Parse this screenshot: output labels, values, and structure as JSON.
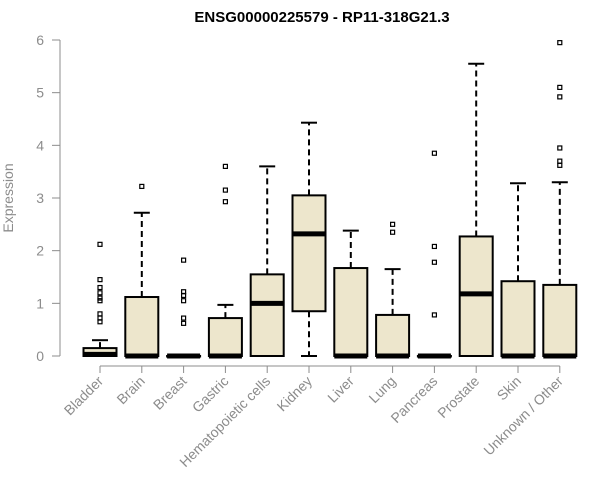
{
  "chart_data": {
    "type": "box",
    "title": "ENSG00000225579 - RP11-318G21.3",
    "xlabel": "",
    "ylabel": "Expression",
    "ylim": [
      0,
      6
    ],
    "yticks": [
      "0",
      "1",
      "2",
      "3",
      "4",
      "5",
      "6"
    ],
    "box_fill": "#ede6cc",
    "series": [
      {
        "name": "Bladder",
        "q1": 0.0,
        "median": 0.03,
        "q3": 0.15,
        "whisker_low": 0.0,
        "whisker_high": 0.3,
        "outliers": [
          2.12,
          1.45,
          1.3,
          1.2,
          1.1,
          1.05,
          0.8,
          0.72,
          0.65
        ]
      },
      {
        "name": "Brain",
        "q1": 0.0,
        "median": 0.0,
        "q3": 1.12,
        "whisker_low": 0.0,
        "whisker_high": 2.72,
        "outliers": [
          3.22
        ]
      },
      {
        "name": "Breast",
        "q1": 0.0,
        "median": 0.0,
        "q3": 0.0,
        "whisker_low": 0.0,
        "whisker_high": 0.0,
        "outliers": [
          1.82,
          1.22,
          1.15,
          1.05,
          0.72,
          0.62
        ]
      },
      {
        "name": "Gastric",
        "q1": 0.0,
        "median": 0.0,
        "q3": 0.72,
        "whisker_low": 0.0,
        "whisker_high": 0.97,
        "outliers": [
          3.6,
          3.15,
          2.93
        ]
      },
      {
        "name": "Hematopoietic cells",
        "q1": 0.0,
        "median": 1.0,
        "q3": 1.55,
        "whisker_low": 0.0,
        "whisker_high": 3.6,
        "outliers": []
      },
      {
        "name": "Kidney",
        "q1": 0.85,
        "median": 2.32,
        "q3": 3.05,
        "whisker_low": 0.0,
        "whisker_high": 4.43,
        "outliers": []
      },
      {
        "name": "Liver",
        "q1": 0.0,
        "median": 0.0,
        "q3": 1.67,
        "whisker_low": 0.0,
        "whisker_high": 2.38,
        "outliers": []
      },
      {
        "name": "Lung",
        "q1": 0.0,
        "median": 0.0,
        "q3": 0.78,
        "whisker_low": 0.0,
        "whisker_high": 1.65,
        "outliers": [
          2.5,
          2.35
        ]
      },
      {
        "name": "Pancreas",
        "q1": 0.0,
        "median": 0.0,
        "q3": 0.0,
        "whisker_low": 0.0,
        "whisker_high": 0.0,
        "outliers": [
          3.85,
          2.08,
          1.78,
          0.78
        ]
      },
      {
        "name": "Prostate",
        "q1": 0.0,
        "median": 1.18,
        "q3": 2.27,
        "whisker_low": 0.0,
        "whisker_high": 5.55,
        "outliers": []
      },
      {
        "name": "Skin",
        "q1": 0.0,
        "median": 0.0,
        "q3": 1.42,
        "whisker_low": 0.0,
        "whisker_high": 3.28,
        "outliers": []
      },
      {
        "name": "Unknown / Other",
        "q1": 0.0,
        "median": 0.0,
        "q3": 1.35,
        "whisker_low": 0.0,
        "whisker_high": 3.3,
        "outliers": [
          5.95,
          5.1,
          4.92,
          3.95,
          3.7,
          3.62
        ]
      }
    ]
  }
}
